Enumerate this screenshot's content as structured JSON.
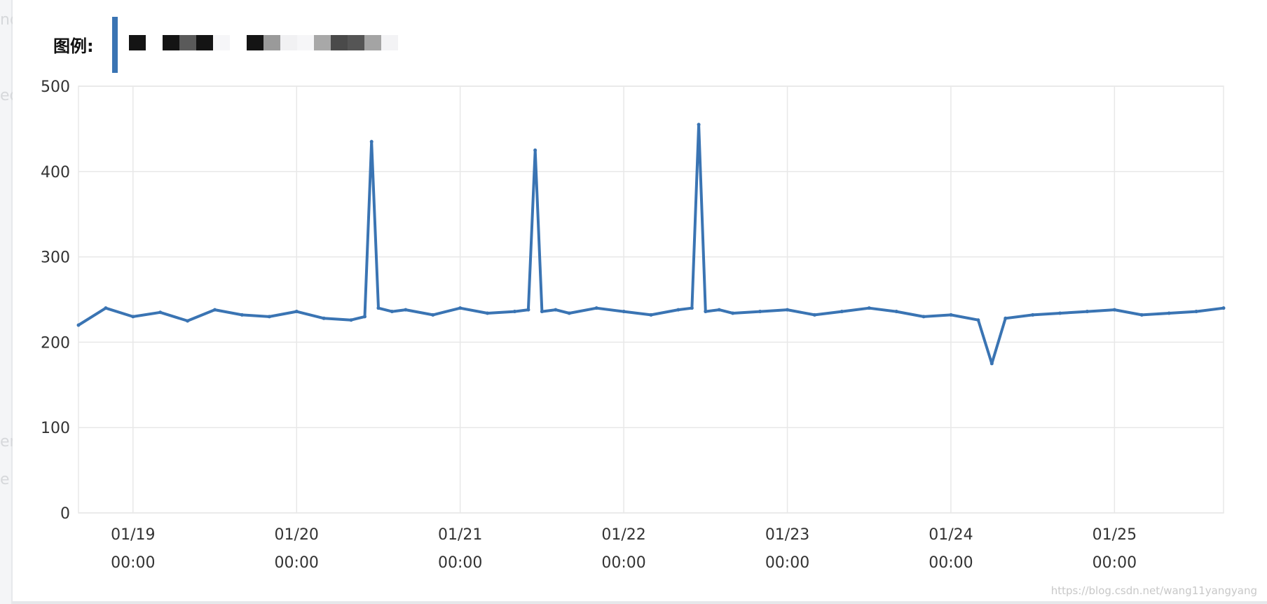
{
  "legend": {
    "label": "图例:",
    "series_color": "#3a74b3"
  },
  "watermark": "https://blog.csdn.net/wang11yangyang",
  "gutter_ghost": [
    "nd",
    "ed",
    "en",
    "e"
  ],
  "chart_data": {
    "type": "line",
    "ylim": [
      0,
      500
    ],
    "y_ticks": [
      "0",
      "100",
      "200",
      "300",
      "400",
      "500"
    ],
    "x_ticks": [
      {
        "date": "01/19",
        "time": "00:00"
      },
      {
        "date": "01/20",
        "time": "00:00"
      },
      {
        "date": "01/21",
        "time": "00:00"
      },
      {
        "date": "01/22",
        "time": "00:00"
      },
      {
        "date": "01/23",
        "time": "00:00"
      },
      {
        "date": "01/24",
        "time": "00:00"
      },
      {
        "date": "01/25",
        "time": "00:00"
      }
    ],
    "x_range": [
      "01/18 16:00",
      "01/25 16:00"
    ],
    "grid": true,
    "series": [
      {
        "color": "#3a74b3",
        "x": [
          "01/18 16:00",
          "01/18 20:00",
          "01/19 00:00",
          "01/19 04:00",
          "01/19 08:00",
          "01/19 12:00",
          "01/19 16:00",
          "01/19 20:00",
          "01/20 00:00",
          "01/20 04:00",
          "01/20 08:00",
          "01/20 10:00",
          "01/20 11:00",
          "01/20 12:00",
          "01/20 14:00",
          "01/20 16:00",
          "01/20 20:00",
          "01/21 00:00",
          "01/21 04:00",
          "01/21 08:00",
          "01/21 10:00",
          "01/21 11:00",
          "01/21 12:00",
          "01/21 14:00",
          "01/21 16:00",
          "01/21 20:00",
          "01/22 00:00",
          "01/22 04:00",
          "01/22 08:00",
          "01/22 10:00",
          "01/22 11:00",
          "01/22 12:00",
          "01/22 14:00",
          "01/22 16:00",
          "01/22 20:00",
          "01/23 00:00",
          "01/23 04:00",
          "01/23 08:00",
          "01/23 12:00",
          "01/23 16:00",
          "01/23 20:00",
          "01/24 00:00",
          "01/24 04:00",
          "01/24 06:00",
          "01/24 08:00",
          "01/24 12:00",
          "01/24 16:00",
          "01/24 20:00",
          "01/25 00:00",
          "01/25 04:00",
          "01/25 08:00",
          "01/25 12:00",
          "01/25 16:00"
        ],
        "y": [
          220,
          240,
          230,
          235,
          225,
          238,
          232,
          230,
          236,
          228,
          226,
          230,
          435,
          240,
          236,
          238,
          232,
          240,
          234,
          236,
          238,
          425,
          236,
          238,
          234,
          240,
          236,
          232,
          238,
          240,
          455,
          236,
          238,
          234,
          236,
          238,
          232,
          236,
          240,
          236,
          230,
          232,
          226,
          175,
          228,
          232,
          234,
          236,
          238,
          232,
          234,
          236,
          240
        ]
      }
    ]
  }
}
